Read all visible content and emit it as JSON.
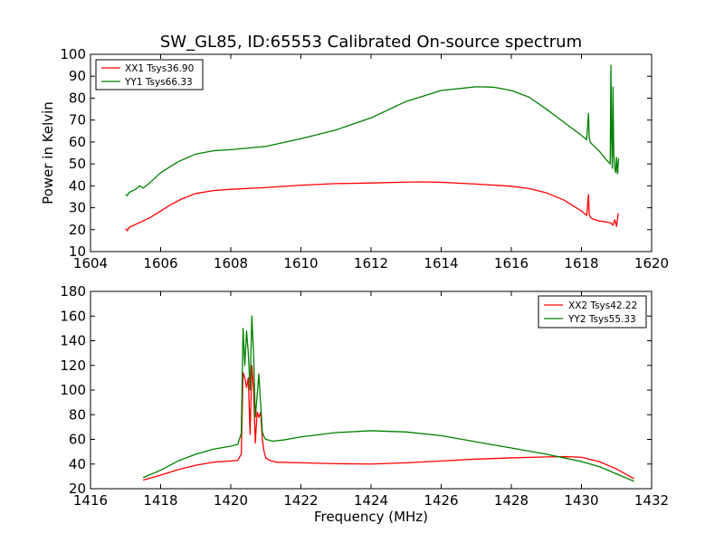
{
  "chart_data": [
    {
      "type": "line",
      "title": "SW_GL85, ID:65553 Calibrated On-source spectrum",
      "xlabel": "",
      "ylabel": "Power in Kelvin",
      "xlim": [
        1604,
        1620
      ],
      "ylim": [
        10,
        100
      ],
      "xticks": [
        1604,
        1606,
        1608,
        1610,
        1612,
        1614,
        1616,
        1618,
        1620
      ],
      "yticks": [
        10,
        20,
        30,
        40,
        50,
        60,
        70,
        80,
        90,
        100
      ],
      "legend_position": "top-left",
      "series": [
        {
          "name": "XX1 Tsys36.90",
          "color": "#ff0000",
          "x": [
            1605.0,
            1605.05,
            1605.1,
            1605.3,
            1605.5,
            1605.7,
            1606.0,
            1606.3,
            1606.6,
            1607.0,
            1607.5,
            1608.0,
            1609.0,
            1610.0,
            1611.0,
            1612.0,
            1613.0,
            1613.5,
            1614.0,
            1615.0,
            1616.0,
            1616.5,
            1617.0,
            1617.5,
            1618.0,
            1618.15,
            1618.2,
            1618.22,
            1618.25,
            1618.3,
            1618.5,
            1618.7,
            1618.85,
            1618.9,
            1618.95,
            1619.0,
            1619.05
          ],
          "y": [
            20.5,
            19.5,
            21.0,
            22.5,
            24.0,
            25.5,
            28.5,
            31.5,
            34.0,
            36.5,
            37.8,
            38.4,
            39.2,
            40.3,
            41.0,
            41.3,
            41.7,
            41.8,
            41.6,
            40.8,
            39.8,
            38.8,
            36.8,
            33.5,
            28.5,
            26.5,
            36.0,
            27.0,
            25.8,
            25.0,
            24.0,
            23.5,
            23.0,
            22.0,
            24.5,
            21.5,
            27.5
          ]
        },
        {
          "name": "YY1 Tsys66.33",
          "color": "#008000",
          "x": [
            1605.0,
            1605.05,
            1605.1,
            1605.3,
            1605.4,
            1605.5,
            1605.7,
            1606.0,
            1606.5,
            1607.0,
            1607.5,
            1608.0,
            1609.0,
            1610.0,
            1611.0,
            1612.0,
            1613.0,
            1614.0,
            1615.0,
            1615.5,
            1616.0,
            1616.5,
            1617.0,
            1617.5,
            1618.0,
            1618.15,
            1618.2,
            1618.22,
            1618.25,
            1618.3,
            1618.5,
            1618.7,
            1618.82,
            1618.84,
            1618.86,
            1618.88,
            1618.9,
            1618.92,
            1618.95,
            1618.98,
            1619.0,
            1619.03,
            1619.06
          ],
          "y": [
            36.0,
            35.5,
            37.0,
            38.5,
            40.0,
            39.0,
            41.5,
            46.0,
            51.0,
            54.5,
            56.0,
            56.5,
            58.0,
            61.5,
            65.5,
            71.0,
            78.5,
            83.5,
            85.2,
            85.0,
            83.5,
            80.5,
            75.0,
            69.0,
            63.0,
            61.0,
            73.0,
            62.0,
            60.0,
            59.0,
            56.0,
            52.0,
            50.0,
            95.0,
            62.0,
            48.0,
            85.0,
            55.0,
            48.0,
            46.0,
            53.0,
            45.5,
            52.5
          ]
        }
      ]
    },
    {
      "type": "line",
      "title": "",
      "xlabel": "Frequency (MHz)",
      "ylabel": "",
      "xlim": [
        1416,
        1432
      ],
      "ylim": [
        20,
        180
      ],
      "xticks": [
        1416,
        1418,
        1420,
        1422,
        1424,
        1426,
        1428,
        1430,
        1432
      ],
      "yticks": [
        20,
        40,
        60,
        80,
        100,
        120,
        140,
        160,
        180
      ],
      "legend_position": "top-right",
      "series": [
        {
          "name": "XX2 Tsys42.22",
          "color": "#ff0000",
          "x": [
            1417.5,
            1418.0,
            1418.5,
            1419.0,
            1419.5,
            1420.0,
            1420.2,
            1420.3,
            1420.35,
            1420.4,
            1420.45,
            1420.5,
            1420.55,
            1420.6,
            1420.65,
            1420.7,
            1420.75,
            1420.8,
            1420.85,
            1420.9,
            1420.95,
            1421.0,
            1421.1,
            1421.3,
            1422.0,
            1423.0,
            1424.0,
            1425.0,
            1426.0,
            1427.0,
            1428.0,
            1429.0,
            1429.5,
            1430.0,
            1430.5,
            1431.0,
            1431.5
          ],
          "y": [
            27.0,
            31.0,
            35.5,
            39.0,
            41.5,
            42.5,
            43.0,
            48.0,
            114.0,
            110.0,
            102.0,
            110.0,
            64.0,
            120.0,
            100.0,
            57.0,
            82.0,
            78.0,
            82.0,
            60.0,
            50.0,
            45.0,
            43.0,
            41.5,
            41.0,
            40.3,
            40.0,
            41.0,
            42.5,
            44.0,
            45.0,
            45.8,
            46.0,
            45.5,
            42.0,
            36.0,
            28.0
          ]
        },
        {
          "name": "YY2 Tsys55.33",
          "color": "#008000",
          "x": [
            1417.5,
            1418.0,
            1418.5,
            1419.0,
            1419.5,
            1420.0,
            1420.2,
            1420.3,
            1420.35,
            1420.4,
            1420.45,
            1420.5,
            1420.55,
            1420.6,
            1420.65,
            1420.7,
            1420.75,
            1420.8,
            1420.85,
            1420.9,
            1420.95,
            1421.0,
            1421.2,
            1421.5,
            1422.0,
            1423.0,
            1424.0,
            1425.0,
            1426.0,
            1427.0,
            1428.0,
            1429.0,
            1429.5,
            1430.0,
            1430.5,
            1431.0,
            1431.5
          ],
          "y": [
            29.0,
            35.0,
            42.5,
            48.0,
            52.0,
            54.5,
            56.0,
            65.0,
            150.0,
            120.0,
            148.0,
            130.0,
            100.0,
            160.0,
            130.0,
            78.0,
            95.0,
            113.0,
            90.0,
            66.0,
            62.0,
            60.0,
            58.5,
            59.5,
            62.0,
            65.5,
            67.0,
            66.0,
            63.0,
            58.0,
            53.0,
            48.0,
            45.0,
            42.0,
            38.0,
            32.0,
            26.0
          ]
        }
      ]
    }
  ]
}
